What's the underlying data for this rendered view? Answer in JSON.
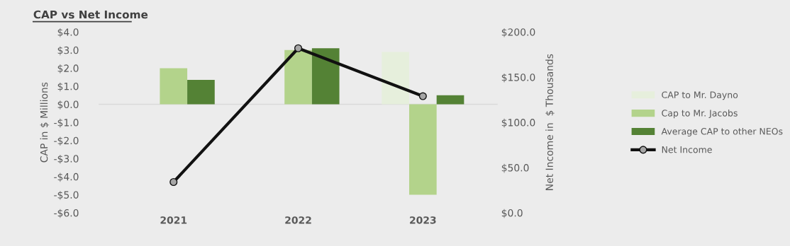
{
  "chart_data": {
    "type": "bar",
    "title": "CAP vs Net Income",
    "ylabel": "CAP in $ Millions",
    "y2label": "Net Income in  $ Thousands",
    "categories": [
      "2021",
      "2022",
      "2023"
    ],
    "series": [
      {
        "name": "CAP to Mr. Dayno",
        "color": "#e6efdc",
        "values": [
          null,
          null,
          2.9
        ]
      },
      {
        "name": "Cap to Mr. Jacobs",
        "color": "#b3d38b",
        "values": [
          2.0,
          3.0,
          -5.0
        ]
      },
      {
        "name": "Average CAP to other NEOs",
        "color": "#548235",
        "values": [
          1.35,
          3.1,
          0.5
        ]
      },
      {
        "name": "Net Income",
        "type": "line",
        "axis": "y2",
        "color": "#111111",
        "marker": "circle",
        "values": [
          34,
          182,
          129
        ]
      }
    ],
    "ylim": [
      -6,
      4
    ],
    "yticks": [
      {
        "value": 4,
        "label": "$4.0"
      },
      {
        "value": 3,
        "label": "$3.0"
      },
      {
        "value": 2,
        "label": "$2.0"
      },
      {
        "value": 1,
        "label": "$1.0"
      },
      {
        "value": 0,
        "label": "$0.0"
      },
      {
        "value": -1,
        "label": "-$1.0"
      },
      {
        "value": -2,
        "label": "-$2.0"
      },
      {
        "value": -3,
        "label": "-$3.0"
      },
      {
        "value": -4,
        "label": "-$4.0"
      },
      {
        "value": -5,
        "label": "-$5.0"
      },
      {
        "value": -6,
        "label": "-$6.0"
      }
    ],
    "y2lim": [
      0,
      200
    ],
    "y2ticks": [
      {
        "value": 0,
        "label": "$0.0"
      },
      {
        "value": 50,
        "label": "$50.0"
      },
      {
        "value": 100,
        "label": "$100.0"
      },
      {
        "value": 150,
        "label": "$150.0"
      },
      {
        "value": 200,
        "label": "$200.0"
      }
    ],
    "ref_lines": [
      {
        "axis": "y",
        "value": 0,
        "color": "#d9d9d9"
      }
    ],
    "legend": "right"
  }
}
